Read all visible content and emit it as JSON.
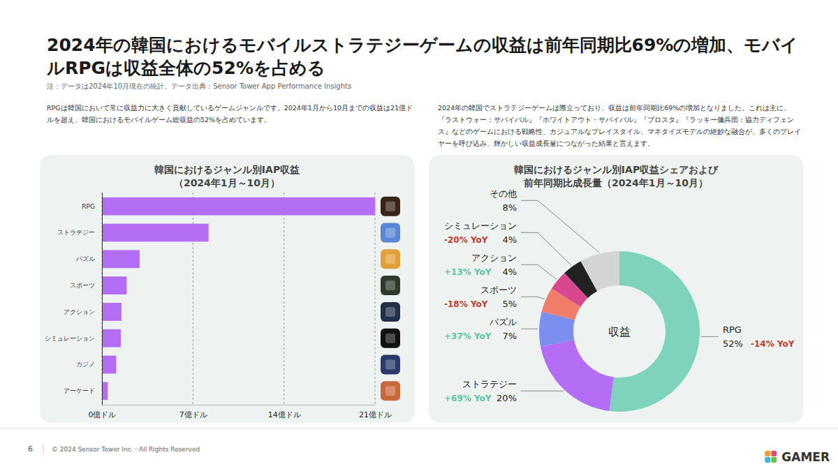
{
  "slide": {
    "title": "2024年の韓国におけるモバイルストラテジーゲームの収益は前年同期比69%の増加、モバイルRPGは収益全体の52%を占める",
    "note": "注：データは2024年10月現在の統計。データ出典：Sensor Tower App Performance Insights",
    "paragraphs": [
      "RPGは韓国において常に収益力に大きく貢献しているゲームジャンルです。2024年1月から10月までの収益は21億ドルを超え、韓国におけるモバイルゲーム総収益の52%を占めています。",
      "2024年の韓国でストラテジーゲームは際立っており、収益は前年同期比69%の増加となりました。これは主に、『ラストウォー：サバイバル』『ホワイトアウト・サバイバル』『ブロスタ』『ラッキー傭兵団：協力ディフェンス』などのゲームにおける戦略性、カジュアルなプレイスタイル、マネタイズモデルの絶妙な融合が、多くのプレイヤーを呼び込み、輝かしい収益成長量につながった結果と言えます。"
    ],
    "page_number": "6",
    "copyright": "© 2024 Sensor Tower Inc. · All Rights Reserved",
    "logo": "GAMER"
  },
  "chart_data": [
    {
      "type": "bar",
      "orientation": "horizontal",
      "title": "韓国におけるジャンル別IAP収益\n（2024年1月～10月）",
      "categories": [
        "RPG",
        "ストラテジー",
        "パズル",
        "スポーツ",
        "アクション",
        "シミュレーション",
        "カジノ",
        "アーケード"
      ],
      "values": [
        21.0,
        8.2,
        2.9,
        1.9,
        1.5,
        1.45,
        1.1,
        0.45
      ],
      "color": "#b36ef5",
      "xlim": [
        0,
        21
      ],
      "xticks": [
        {
          "value": 0,
          "label": "0億ドル"
        },
        {
          "value": 7,
          "label": "7億ドル"
        },
        {
          "value": 14,
          "label": "14億ドル"
        },
        {
          "value": 21,
          "label": "21億ドル"
        }
      ],
      "grid": true
    },
    {
      "type": "pie",
      "title": "韓国におけるジャンル別IAP収益シェアおよび\n前年同期比成長量（2024年1月～10月）",
      "annotation": "収益",
      "categories": [
        "RPG",
        "ストラテジー",
        "パズル",
        "スポーツ",
        "アクション",
        "シミュレーション",
        "その他"
      ],
      "values": [
        52,
        20,
        7,
        5,
        4,
        4,
        8
      ],
      "value_labels": [
        "52%",
        "20%",
        "7%",
        "5%",
        "4%",
        "4%",
        "8%"
      ],
      "data_labels": true,
      "colors": [
        "#7dd3bb",
        "#b36ef5",
        "#7b8ff0",
        "#ef7d68",
        "#d8488f",
        "#222222",
        "#d4d4d4"
      ],
      "yoy": [
        -14,
        69,
        37,
        -18,
        13,
        -20,
        null
      ],
      "yoy_labels": [
        "-14% YoY",
        "+69% YoY",
        "+37% YoY",
        "-18% YoY",
        "+13% YoY",
        "-20% YoY",
        null
      ]
    }
  ]
}
